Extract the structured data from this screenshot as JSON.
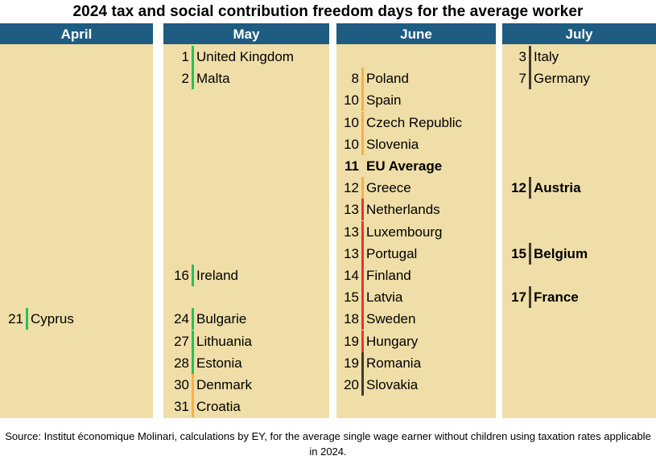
{
  "chart_data": {
    "type": "table",
    "title": "2024 tax and social contribution freedom days for the average worker",
    "colors": {
      "header": "#1e5c82",
      "panel": "#f0dea8",
      "green": "#27c05a",
      "orange": "#f5b04a",
      "red": "#dc3a3a",
      "dark": "#3e3a36"
    },
    "columns": [
      {
        "month": "April",
        "entries": [
          {
            "day": "21",
            "country": "Cyprus",
            "marker": "green",
            "bold": false
          }
        ]
      },
      {
        "month": "May",
        "entries": [
          {
            "day": "1",
            "country": "United Kingdom",
            "marker": "green",
            "bold": false
          },
          {
            "day": "2",
            "country": "Malta",
            "marker": "green",
            "bold": false
          },
          {
            "day": "16",
            "country": "Ireland",
            "marker": "green",
            "bold": false
          },
          {
            "day": "24",
            "country": "Bulgarie",
            "marker": "green",
            "bold": false
          },
          {
            "day": "27",
            "country": "Lithuania",
            "marker": "green",
            "bold": false
          },
          {
            "day": "28",
            "country": "Estonia",
            "marker": "green",
            "bold": false
          },
          {
            "day": "30",
            "country": "Denmark",
            "marker": "orange",
            "bold": false
          },
          {
            "day": "31",
            "country": "Croatia",
            "marker": "orange",
            "bold": false
          }
        ]
      },
      {
        "month": "June",
        "entries": [
          {
            "day": "8",
            "country": "Poland",
            "marker": "orange",
            "bold": false
          },
          {
            "day": "10",
            "country": "Spain",
            "marker": "orange",
            "bold": false
          },
          {
            "day": "10",
            "country": "Czech Republic",
            "marker": "orange",
            "bold": false
          },
          {
            "day": "10",
            "country": "Slovenia",
            "marker": "orange",
            "bold": false
          },
          {
            "day": "11",
            "country": "EU Average",
            "marker": "none",
            "bold": true
          },
          {
            "day": "12",
            "country": "Greece",
            "marker": "orange",
            "bold": false
          },
          {
            "day": "13",
            "country": "Netherlands",
            "marker": "red",
            "bold": false
          },
          {
            "day": "13",
            "country": "Luxembourg",
            "marker": "red",
            "bold": false
          },
          {
            "day": "13",
            "country": "Portugal",
            "marker": "red",
            "bold": false
          },
          {
            "day": "14",
            "country": "Finland",
            "marker": "red",
            "bold": false
          },
          {
            "day": "15",
            "country": "Latvia",
            "marker": "red",
            "bold": false
          },
          {
            "day": "18",
            "country": "Sweden",
            "marker": "red",
            "bold": false
          },
          {
            "day": "19",
            "country": "Hungary",
            "marker": "red",
            "bold": false
          },
          {
            "day": "19",
            "country": "Romania",
            "marker": "dark",
            "bold": false
          },
          {
            "day": "20",
            "country": "Slovakia",
            "marker": "dark",
            "bold": false
          }
        ]
      },
      {
        "month": "July",
        "entries": [
          {
            "day": "3",
            "country": "Italy",
            "marker": "dark",
            "bold": false
          },
          {
            "day": "7",
            "country": "Germany",
            "marker": "dark",
            "bold": false
          },
          {
            "day": "12",
            "country": "Austria",
            "marker": "dark",
            "bold": true
          },
          {
            "day": "15",
            "country": "Belgium",
            "marker": "dark",
            "bold": true
          },
          {
            "day": "17",
            "country": "France",
            "marker": "dark",
            "bold": true
          }
        ]
      }
    ]
  },
  "source": "Source: Institut économique Molinari, calculations by EY, for the average single wage earner without children using taxation rates applicable in 2024."
}
